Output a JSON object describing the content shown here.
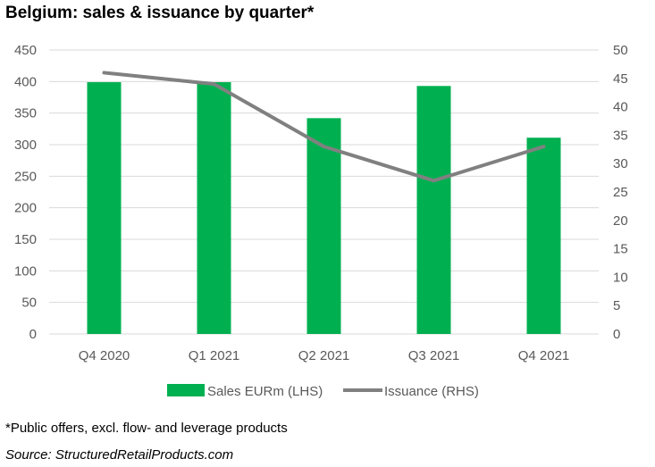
{
  "title": "Belgium: sales & issuance by quarter*",
  "footnote": "*Public offers, excl. flow- and leverage products",
  "source": "Source: StructuredRetailProducts.com",
  "colors": {
    "bar": "#00b050",
    "line": "#808080",
    "grid": "#d9d9d9"
  },
  "chart_data": {
    "type": "bar",
    "categories": [
      "Q4 2020",
      "Q1 2021",
      "Q2 2021",
      "Q3 2021",
      "Q4 2021"
    ],
    "series": [
      {
        "name": "Sales EURm (LHS)",
        "type": "bar",
        "axis": "left",
        "values": [
          399,
          399,
          342,
          393,
          311
        ]
      },
      {
        "name": "Issuance (RHS)",
        "type": "line",
        "axis": "right",
        "values": [
          46,
          44,
          33,
          27,
          33
        ]
      }
    ],
    "y_left": {
      "min": 0,
      "max": 450,
      "ticks": [
        "0",
        "50",
        "100",
        "150",
        "200",
        "250",
        "300",
        "350",
        "400",
        "450"
      ]
    },
    "y_right": {
      "min": 0,
      "max": 50,
      "ticks": [
        "0",
        "5",
        "10",
        "15",
        "20",
        "25",
        "30",
        "35",
        "40",
        "45",
        "50"
      ]
    },
    "grid": true,
    "legend": "bottom"
  }
}
